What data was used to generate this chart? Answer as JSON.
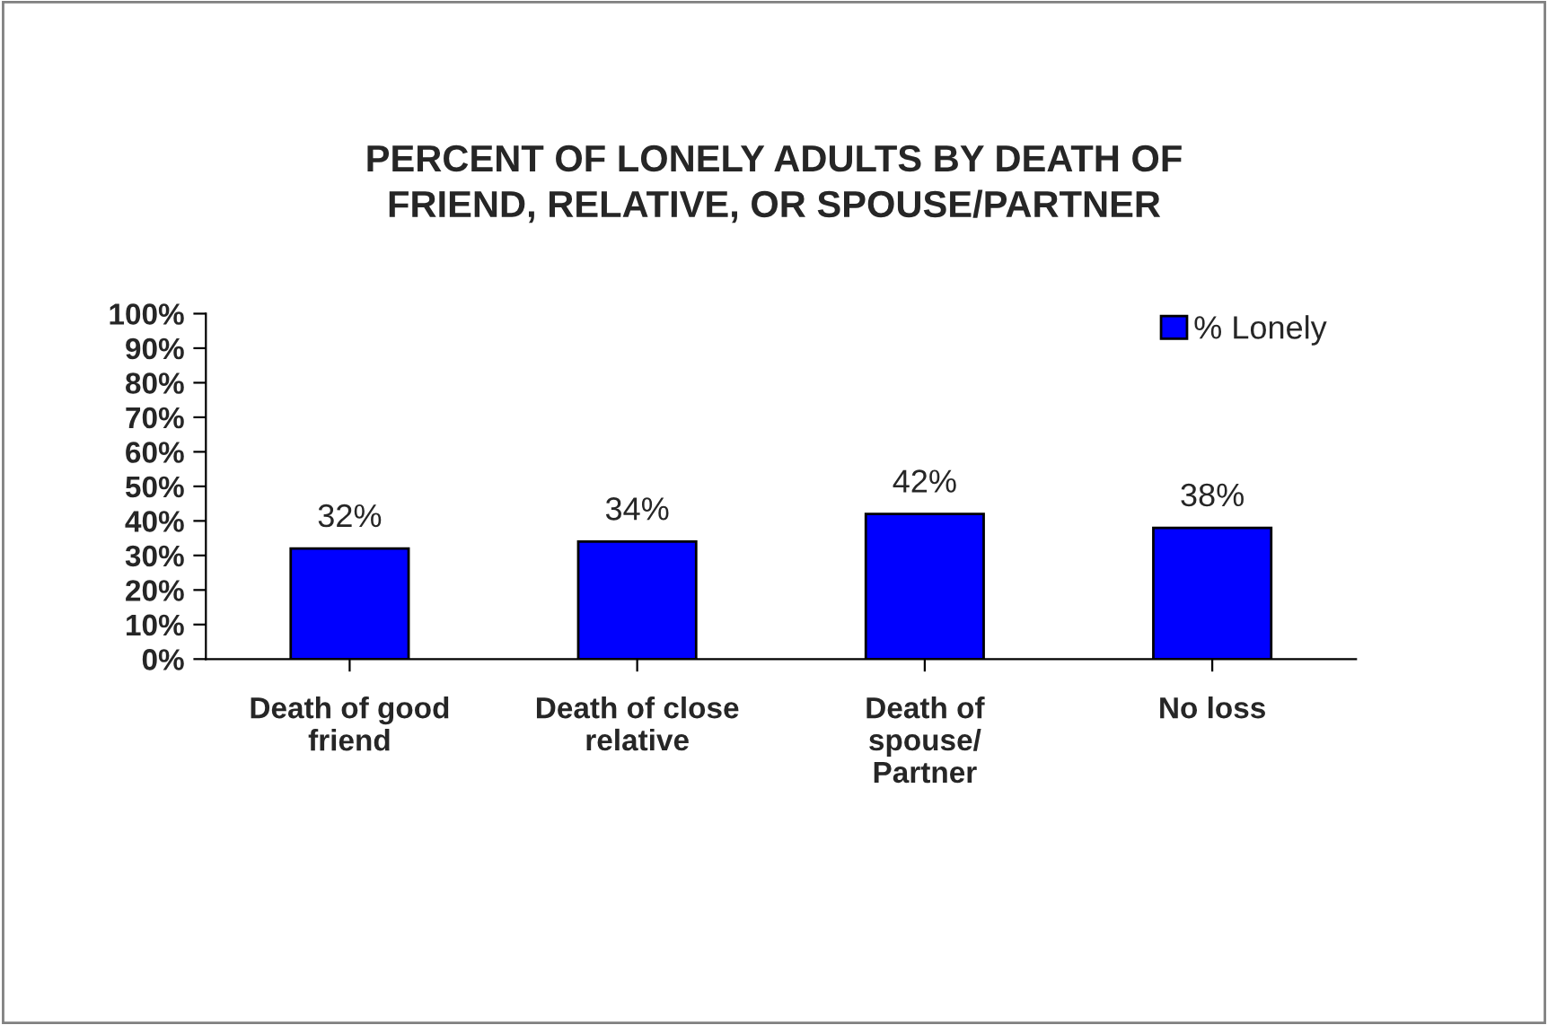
{
  "chart_data": {
    "type": "bar",
    "title": "PERCENT OF LONELY ADULTS BY DEATH OF\nFRIEND, RELATIVE, OR SPOUSE/PARTNER",
    "categories": [
      "Death of good\nfriend",
      "Death of close\nrelative",
      "Death of\nspouse/\nPartner",
      "No loss"
    ],
    "series": [
      {
        "name": "% Lonely",
        "color": "#0000ff",
        "values": [
          32,
          34,
          42,
          38
        ],
        "value_labels": [
          "32%",
          "34%",
          "42%",
          "38%"
        ]
      }
    ],
    "ylim": [
      0,
      100
    ],
    "yticks": [
      {
        "value": 0,
        "label": "0%"
      },
      {
        "value": 10,
        "label": "10%"
      },
      {
        "value": 20,
        "label": "20%"
      },
      {
        "value": 30,
        "label": "30%"
      },
      {
        "value": 40,
        "label": "40%"
      },
      {
        "value": 50,
        "label": "50%"
      },
      {
        "value": 60,
        "label": "60%"
      },
      {
        "value": 70,
        "label": "70%"
      },
      {
        "value": 80,
        "label": "80%"
      },
      {
        "value": 90,
        "label": "90%"
      },
      {
        "value": 100,
        "label": "100%"
      }
    ],
    "grid": false,
    "legend": "top right"
  }
}
